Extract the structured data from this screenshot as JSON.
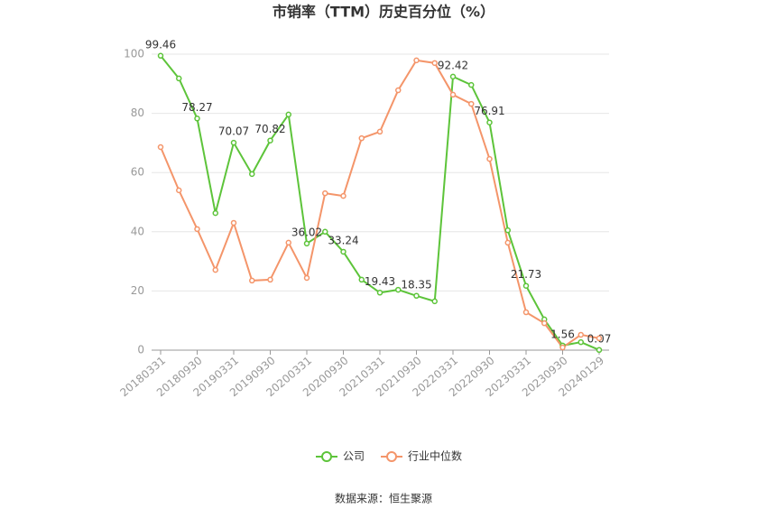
{
  "chart_data": {
    "type": "line",
    "title": "市销率（TTM）历史百分位（%）",
    "categories": [
      "20180331",
      null,
      "20180930",
      null,
      "20190331",
      null,
      "20190930",
      null,
      "20200331",
      null,
      "20200930",
      null,
      "20210331",
      null,
      "20210930",
      null,
      "20220331",
      null,
      "20220930",
      null,
      "20230331",
      null,
      "20230930",
      null,
      "20240129"
    ],
    "series": [
      {
        "name": "公司",
        "color": "#5dc43a",
        "values": [
          99.46,
          91.8,
          78.27,
          46.3,
          70.07,
          59.5,
          70.82,
          79.6,
          36.02,
          40,
          33.24,
          23.8,
          19.43,
          20.4,
          18.35,
          16.5,
          92.42,
          89.6,
          76.91,
          40.5,
          21.73,
          10.4,
          1.56,
          2.7,
          0.07
        ]
      },
      {
        "name": "行业中位数",
        "color": "#f4956a",
        "values": [
          68.6,
          54,
          40.9,
          27.1,
          43,
          23.5,
          23.8,
          36.3,
          24.4,
          53,
          52.1,
          71.6,
          73.8,
          87.8,
          97.9,
          97,
          86.3,
          83.2,
          64.6,
          36.3,
          12.8,
          9.1,
          0.9,
          5.2,
          4.0
        ]
      }
    ],
    "ylim": [
      0,
      100
    ],
    "yticks": [
      0,
      20,
      40,
      60,
      80,
      100
    ],
    "grid": true,
    "legend": "bottom",
    "source": "数据来源：恒生聚源"
  }
}
